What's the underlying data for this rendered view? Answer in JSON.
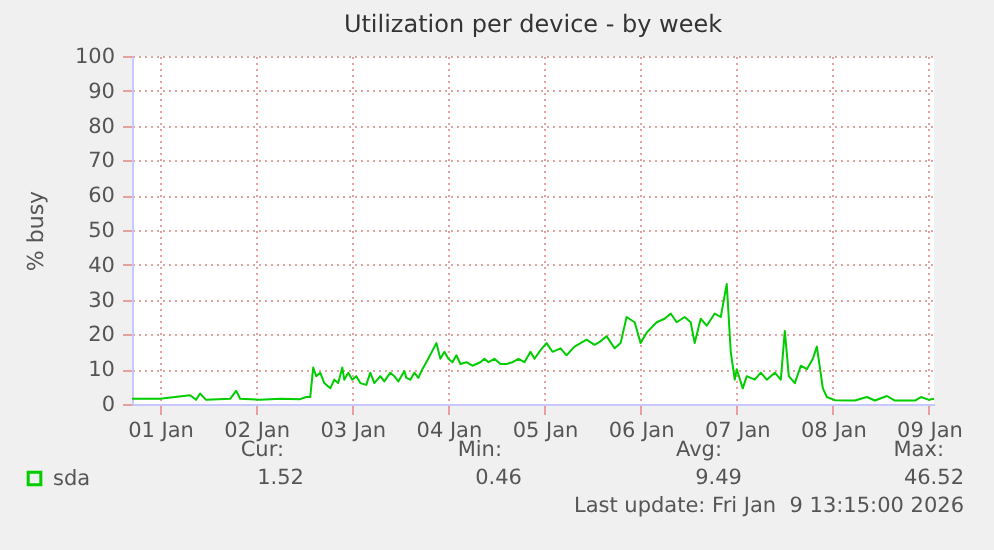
{
  "chart_data": {
    "type": "line",
    "title": "Utilization per device - by week",
    "ylabel": "% busy",
    "x": [
      "2026-01-01T05:00",
      "2026-01-01T12:00",
      "2026-01-01T19:30",
      "2026-01-01T21:00",
      "2026-01-01T22:00",
      "2026-01-01T23:30",
      "2026-01-02T05:30",
      "2026-01-02T07:00",
      "2026-01-02T08:00",
      "2026-01-02T13:00",
      "2026-01-02T18:00",
      "2026-01-02T23:00",
      "2026-01-03T00:30",
      "2026-01-03T01:30",
      "2026-01-03T02:15",
      "2026-01-03T03:00",
      "2026-01-03T04:00",
      "2026-01-03T05:00",
      "2026-01-03T06:30",
      "2026-01-03T07:30",
      "2026-01-03T08:30",
      "2026-01-03T09:30",
      "2026-01-03T10:00",
      "2026-01-03T11:00",
      "2026-01-03T12:00",
      "2026-01-03T13:00",
      "2026-01-03T14:00",
      "2026-01-03T15:30",
      "2026-01-03T16:30",
      "2026-01-03T17:30",
      "2026-01-03T19:00",
      "2026-01-03T20:00",
      "2026-01-03T21:30",
      "2026-01-03T22:30",
      "2026-01-03T23:30",
      "2026-01-04T01:00",
      "2026-01-04T01:30",
      "2026-01-04T02:30",
      "2026-01-04T03:30",
      "2026-01-04T04:30",
      "2026-01-04T05:30",
      "2026-01-04T06:30",
      "2026-01-04T09:00",
      "2026-01-04T10:00",
      "2026-01-04T11:00",
      "2026-01-04T12:00",
      "2026-01-04T13:00",
      "2026-01-04T14:00",
      "2026-01-04T15:00",
      "2026-01-04T16:30",
      "2026-01-04T18:00",
      "2026-01-04T20:00",
      "2026-01-04T21:00",
      "2026-01-04T22:00",
      "2026-01-04T23:30",
      "2026-01-05T01:00",
      "2026-01-05T02:30",
      "2026-01-05T04:00",
      "2026-01-05T05:30",
      "2026-01-05T07:00",
      "2026-01-05T08:30",
      "2026-01-05T09:30",
      "2026-01-05T11:00",
      "2026-01-05T12:30",
      "2026-01-05T14:00",
      "2026-01-05T16:00",
      "2026-01-05T17:30",
      "2026-01-05T19:30",
      "2026-01-05T21:00",
      "2026-01-05T22:30",
      "2026-01-06T00:30",
      "2026-01-06T02:00",
      "2026-01-06T03:30",
      "2026-01-06T05:30",
      "2026-01-06T07:00",
      "2026-01-06T08:30",
      "2026-01-06T10:30",
      "2026-01-06T12:00",
      "2026-01-06T13:30",
      "2026-01-06T16:00",
      "2026-01-06T18:00",
      "2026-01-06T19:30",
      "2026-01-06T21:00",
      "2026-01-06T23:00",
      "2026-01-07T00:30",
      "2026-01-07T01:30",
      "2026-01-07T03:00",
      "2026-01-07T04:30",
      "2026-01-07T06:30",
      "2026-01-07T08:00",
      "2026-01-07T09:30",
      "2026-01-07T10:30",
      "2026-01-07T11:30",
      "2026-01-07T12:00",
      "2026-01-07T13:30",
      "2026-01-07T14:30",
      "2026-01-07T16:30",
      "2026-01-07T18:00",
      "2026-01-07T19:30",
      "2026-01-07T21:30",
      "2026-01-07T23:00",
      "2026-01-08T00:00",
      "2026-01-08T01:00",
      "2026-01-08T02:30",
      "2026-01-08T04:00",
      "2026-01-08T05:30",
      "2026-01-08T07:00",
      "2026-01-08T08:00",
      "2026-01-08T09:30",
      "2026-01-08T10:30",
      "2026-01-08T12:30",
      "2026-01-08T17:30",
      "2026-01-08T20:30",
      "2026-01-08T22:30",
      "2026-01-09T01:30",
      "2026-01-09T03:30",
      "2026-01-09T08:30",
      "2026-01-09T10:00",
      "2026-01-09T12:00",
      "2026-01-09T13:15"
    ],
    "series": [
      {
        "name": "sda",
        "color": "#00cc00",
        "values": [
          1.5,
          1.5,
          2.5,
          1.2,
          3,
          1.2,
          1.5,
          3.8,
          1.5,
          1.2,
          1.5,
          1.4,
          2,
          2,
          10.5,
          8,
          9,
          6,
          4.5,
          7,
          6,
          10.5,
          7,
          9,
          7,
          8,
          6,
          5.5,
          9,
          6,
          8,
          6.5,
          9,
          8,
          6.5,
          9.5,
          7.5,
          7,
          9,
          7.5,
          10,
          12,
          17.5,
          13,
          15,
          13,
          12,
          14,
          11.5,
          12,
          11,
          12,
          13,
          12,
          13,
          11.5,
          11.5,
          12,
          13,
          12,
          15,
          13,
          15.5,
          17.5,
          15,
          16,
          14,
          16.5,
          17.5,
          18.5,
          17,
          18,
          19.5,
          16,
          17.5,
          25,
          23.5,
          17.5,
          20.5,
          23.5,
          24.5,
          26,
          23.5,
          25,
          23.5,
          17.5,
          24.5,
          22.5,
          26,
          25,
          34.5,
          15,
          7,
          10,
          4.5,
          8,
          7,
          9,
          7,
          9,
          7,
          21,
          8,
          6,
          11,
          10,
          13,
          16.5,
          4.5,
          2,
          1.1,
          1,
          2,
          1,
          2.3,
          1,
          1,
          2,
          1.2,
          1.52
        ]
      }
    ],
    "xlim": [
      "2026-01-01T05:00",
      "2026-01-09T13:15"
    ],
    "xticks": [
      {
        "value": "2026-01-01T12:00",
        "label": "01 Jan"
      },
      {
        "value": "2026-01-02T12:00",
        "label": "02 Jan"
      },
      {
        "value": "2026-01-03T12:00",
        "label": "03 Jan"
      },
      {
        "value": "2026-01-04T12:00",
        "label": "04 Jan"
      },
      {
        "value": "2026-01-05T12:00",
        "label": "05 Jan"
      },
      {
        "value": "2026-01-06T12:00",
        "label": "06 Jan"
      },
      {
        "value": "2026-01-07T12:00",
        "label": "07 Jan"
      },
      {
        "value": "2026-01-08T12:00",
        "label": "08 Jan"
      },
      {
        "value": "2026-01-09T12:00",
        "label": "09 Jan"
      }
    ],
    "ylim": [
      0,
      100
    ],
    "yticks": [
      0,
      10,
      20,
      30,
      40,
      50,
      60,
      70,
      80,
      90,
      100
    ],
    "grid": true,
    "legend": "bottom left",
    "marker": "none",
    "line_style": "solid",
    "annotations": [
      "Cur:",
      "Min:",
      "Avg:",
      "Max:",
      "1.52",
      "0.46",
      "9.49",
      "46.52",
      "Last update: Fri Jan  9 13:15:00 2026"
    ]
  }
}
